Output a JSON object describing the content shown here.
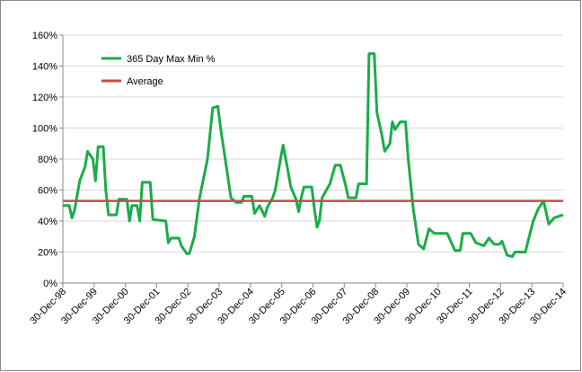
{
  "chart_data": {
    "type": "line",
    "series": [
      {
        "name": "365 Day Max Min %",
        "color": "#1aac4a",
        "x": [
          "1998-12-30",
          "1999-03-15",
          "1999-04-15",
          "1999-05-15",
          "1999-07-15",
          "1999-09-15",
          "1999-10-15",
          "1999-12-15",
          "2000-01-15",
          "2000-02-15",
          "2000-04-15",
          "2000-05-15",
          "2000-06-15",
          "2000-09-15",
          "2000-10-15",
          "2001-01-15",
          "2001-02-15",
          "2001-03-15",
          "2001-05-15",
          "2001-06-15",
          "2001-07-15",
          "2001-10-15",
          "2001-11-15",
          "2002-04-15",
          "2002-05-15",
          "2002-06-15",
          "2002-09-15",
          "2002-10-15",
          "2002-12-15",
          "2003-01-15",
          "2003-03-15",
          "2003-05-15",
          "2003-08-15",
          "2003-10-15",
          "2003-12-15",
          "2004-01-15",
          "2004-03-15",
          "2004-05-15",
          "2004-07-15",
          "2004-09-15",
          "2004-10-15",
          "2005-01-15",
          "2005-02-15",
          "2005-04-15",
          "2005-06-15",
          "2005-07-15",
          "2005-09-15",
          "2005-10-15",
          "2005-12-15",
          "2006-01-15",
          "2006-02-15",
          "2006-04-15",
          "2006-06-15",
          "2006-07-15",
          "2006-08-15",
          "2006-09-15",
          "2006-12-15",
          "2007-01-15",
          "2007-02-15",
          "2007-03-15",
          "2007-04-15",
          "2007-07-15",
          "2007-09-15",
          "2007-11-15",
          "2008-01-15",
          "2008-02-15",
          "2008-05-15",
          "2008-06-15",
          "2008-09-15",
          "2008-10-15",
          "2008-12-15",
          "2009-01-15",
          "2009-03-15",
          "2009-04-15",
          "2009-06-15",
          "2009-07-15",
          "2009-08-15",
          "2009-10-15",
          "2009-12-15",
          "2010-01-15",
          "2010-03-15",
          "2010-05-15",
          "2010-07-15",
          "2010-09-15",
          "2010-11-15",
          "2011-02-15",
          "2011-04-15",
          "2011-07-15",
          "2011-09-15",
          "2011-10-15",
          "2012-01-15",
          "2012-03-15",
          "2012-06-15",
          "2012-08-15",
          "2012-10-15",
          "2012-12-15",
          "2013-01-15",
          "2013-03-15",
          "2013-05-15",
          "2013-06-15",
          "2013-10-15",
          "2013-11-15",
          "2014-01-15",
          "2014-03-15",
          "2014-05-15",
          "2014-07-15",
          "2014-09-15",
          "2014-12-30"
        ],
        "values": [
          50,
          50,
          42,
          47,
          66,
          75,
          85,
          80,
          66,
          88,
          88,
          60,
          44,
          44,
          54,
          54,
          40,
          50,
          50,
          40,
          65,
          65,
          41,
          40,
          26,
          29,
          29,
          24,
          19,
          19,
          30,
          55,
          80,
          113,
          114,
          100,
          78,
          55,
          52,
          52,
          56,
          56,
          45,
          50,
          43,
          49,
          55,
          60,
          80,
          89,
          80,
          62,
          54,
          46,
          55,
          62,
          62,
          48,
          36,
          40,
          55,
          64,
          76,
          76,
          63,
          55,
          55,
          64,
          64,
          148,
          148,
          110,
          95,
          85,
          90,
          104,
          99,
          104,
          104,
          80,
          48,
          25,
          22,
          35,
          32,
          32,
          32,
          21,
          21,
          32,
          32,
          26,
          24,
          29,
          25,
          25,
          27,
          18,
          17,
          20,
          20,
          27,
          40,
          48,
          53,
          38,
          42,
          44
        ]
      },
      {
        "name": "Average",
        "color": "#c0504d",
        "x": [
          "1998-12-30",
          "2014-12-30"
        ],
        "values": [
          53,
          53
        ]
      }
    ],
    "xlim": [
      "1998-12-30",
      "2014-12-30"
    ],
    "xticks": [
      {
        "value": "1998-12-30",
        "label": "30-Dec-98"
      },
      {
        "value": "1999-12-30",
        "label": "30-Dec-99"
      },
      {
        "value": "2000-12-30",
        "label": "30-Dec-00"
      },
      {
        "value": "2001-12-30",
        "label": "30-Dec-01"
      },
      {
        "value": "2002-12-30",
        "label": "30-Dec-02"
      },
      {
        "value": "2003-12-30",
        "label": "30-Dec-03"
      },
      {
        "value": "2004-12-30",
        "label": "30-Dec-04"
      },
      {
        "value": "2005-12-30",
        "label": "30-Dec-05"
      },
      {
        "value": "2006-12-30",
        "label": "30-Dec-06"
      },
      {
        "value": "2007-12-30",
        "label": "30-Dec-07"
      },
      {
        "value": "2008-12-30",
        "label": "30-Dec-08"
      },
      {
        "value": "2009-12-30",
        "label": "30-Dec-09"
      },
      {
        "value": "2010-12-30",
        "label": "30-Dec-10"
      },
      {
        "value": "2011-12-30",
        "label": "30-Dec-11"
      },
      {
        "value": "2012-12-30",
        "label": "30-Dec-12"
      },
      {
        "value": "2013-12-30",
        "label": "30-Dec-13"
      },
      {
        "value": "2014-12-30",
        "label": "30-Dec-14"
      }
    ],
    "ylim": [
      0,
      160
    ],
    "yticks": [
      {
        "value": 0,
        "label": "0%"
      },
      {
        "value": 20,
        "label": "20%"
      },
      {
        "value": 40,
        "label": "40%"
      },
      {
        "value": 60,
        "label": "60%"
      },
      {
        "value": 80,
        "label": "80%"
      },
      {
        "value": 100,
        "label": "100%"
      },
      {
        "value": 120,
        "label": "120%"
      },
      {
        "value": 140,
        "label": "140%"
      },
      {
        "value": 160,
        "label": "160%"
      }
    ],
    "grid": true,
    "legend": "top-left"
  }
}
